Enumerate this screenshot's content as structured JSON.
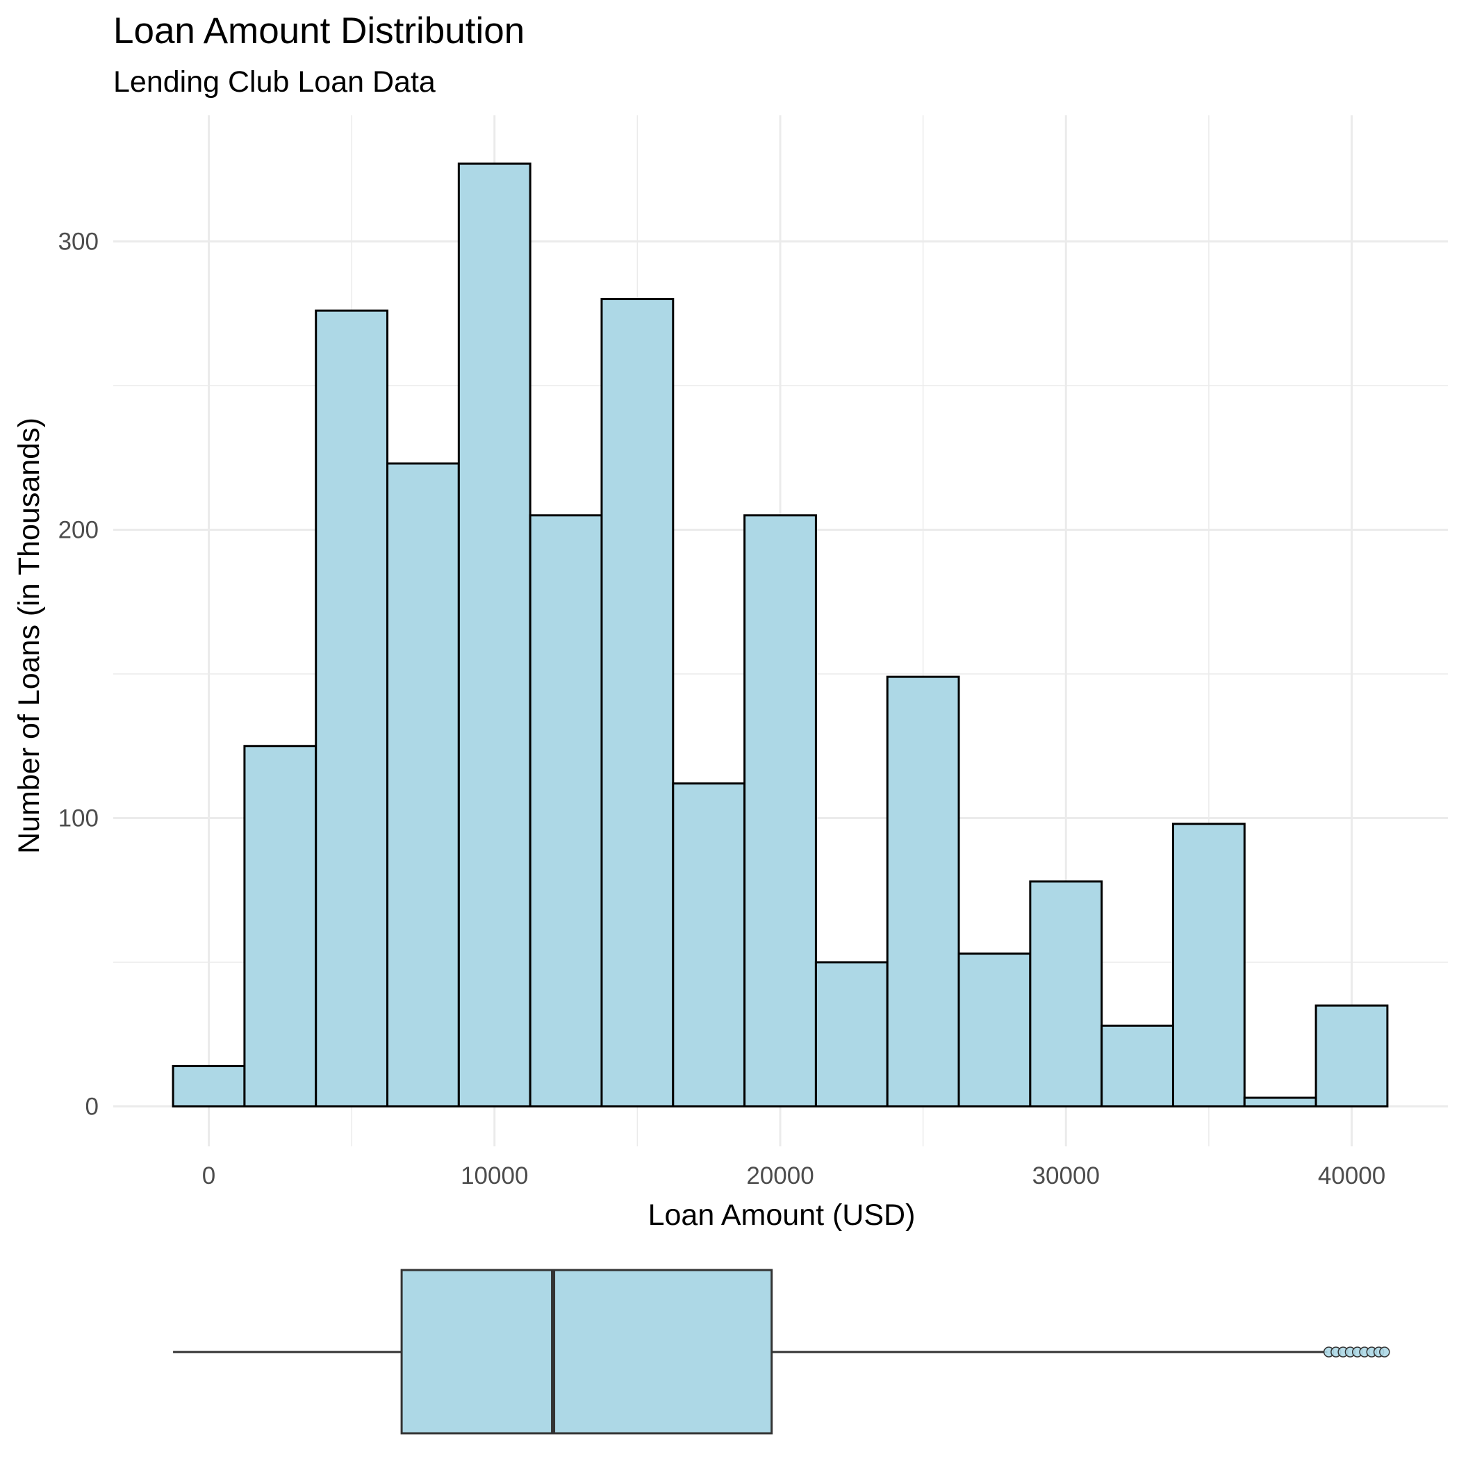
{
  "chart_data": [
    {
      "type": "histogram",
      "title": "Loan Amount Distribution",
      "subtitle": "Lending Club Loan Data",
      "xlabel": "Loan Amount (USD)",
      "ylabel": "Number of Loans (in Thousands)",
      "xlim": [
        -3350,
        42800
      ],
      "ylim": [
        -17,
        340
      ],
      "x_ticks": [
        0,
        10000,
        20000,
        30000,
        40000
      ],
      "x_tick_labels": [
        "0",
        "10000",
        "20000",
        "30000",
        "40000"
      ],
      "y_ticks": [
        0,
        100,
        200,
        300
      ],
      "y_tick_labels": [
        "0",
        "100",
        "200",
        "300"
      ],
      "grid": true,
      "bin_width": 2500,
      "bins": [
        {
          "x_start": -1250,
          "x_end": 1250,
          "value": 14
        },
        {
          "x_start": 1250,
          "x_end": 3750,
          "value": 125
        },
        {
          "x_start": 3750,
          "x_end": 6250,
          "value": 276
        },
        {
          "x_start": 6250,
          "x_end": 8750,
          "value": 223
        },
        {
          "x_start": 8750,
          "x_end": 11250,
          "value": 327
        },
        {
          "x_start": 11250,
          "x_end": 13750,
          "value": 205
        },
        {
          "x_start": 13750,
          "x_end": 16250,
          "value": 280
        },
        {
          "x_start": 16250,
          "x_end": 18750,
          "value": 112
        },
        {
          "x_start": 18750,
          "x_end": 21250,
          "value": 205
        },
        {
          "x_start": 21250,
          "x_end": 23750,
          "value": 50
        },
        {
          "x_start": 23750,
          "x_end": 26250,
          "value": 149
        },
        {
          "x_start": 26250,
          "x_end": 28750,
          "value": 53
        },
        {
          "x_start": 28750,
          "x_end": 31250,
          "value": 78
        },
        {
          "x_start": 31250,
          "x_end": 33750,
          "value": 28
        },
        {
          "x_start": 33750,
          "x_end": 36250,
          "value": 98
        },
        {
          "x_start": 36250,
          "x_end": 38750,
          "value": 3
        },
        {
          "x_start": 38750,
          "x_end": 41250,
          "value": 35
        }
      ],
      "fill_color": "#add8e6",
      "edge_color": "#000000"
    },
    {
      "type": "boxplot",
      "orientation": "horizontal",
      "whisker_low": -1250,
      "q1": 6750,
      "median": 12050,
      "q3": 19700,
      "whisker_high": 39150,
      "outliers": [
        39200,
        39450,
        39700,
        39950,
        40200,
        40450,
        40700,
        40950,
        41150
      ],
      "fill_color": "#add8e6",
      "line_color": "#333333"
    }
  ],
  "colors": {
    "bar_fill": "#add8e6",
    "bar_edge": "#000000",
    "grid": "#ebebeb",
    "tick_text": "#4d4d4d",
    "box_line": "#333333"
  }
}
